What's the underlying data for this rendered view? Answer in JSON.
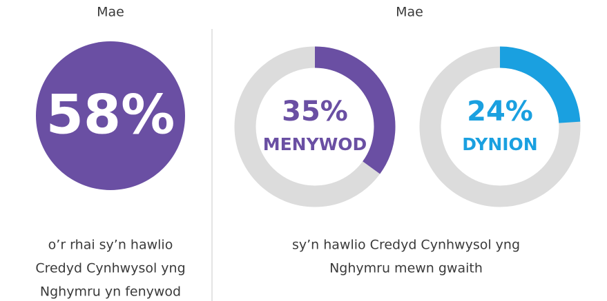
{
  "left": {
    "heading": "Mae",
    "value": 58,
    "value_label": "58%",
    "color": "#6a4fa3",
    "caption": [
      "o’r rhai sy’n hawlio",
      "Credyd Cynhwysol yng",
      "Nghymru yn fenywod"
    ]
  },
  "right": {
    "heading": "Mae",
    "range": [
      0,
      100
    ],
    "track_color": "#dcdcdc",
    "donuts": [
      {
        "value": 35,
        "value_label": "35%",
        "name": "MENYWOD",
        "color": "#6a4fa3"
      },
      {
        "value": 24,
        "value_label": "24%",
        "name": "DYNION",
        "color": "#1aa0e0"
      }
    ],
    "caption": [
      "sy’n hawlio Credyd Cynhwysol yng",
      "Nghymru mewn gwaith"
    ]
  }
}
